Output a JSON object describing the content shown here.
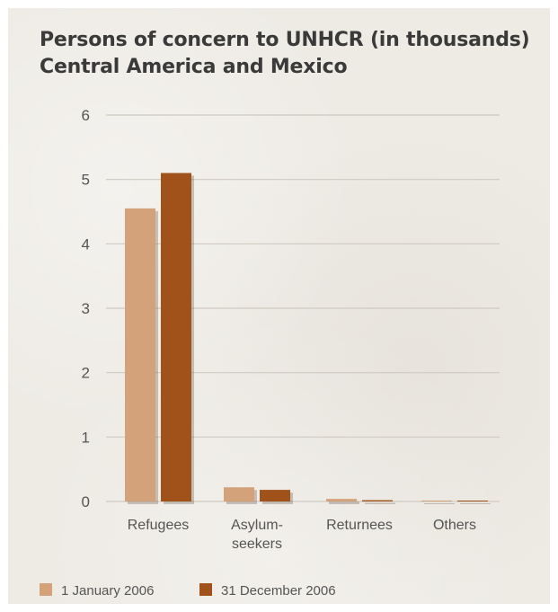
{
  "title_line1": "Persons of concern to UNHCR (in thousands)",
  "title_line2": "Central America and Mexico",
  "chart_data": {
    "type": "bar",
    "categories": [
      [
        "Refugees"
      ],
      [
        "Asylum-",
        "seekers"
      ],
      [
        "Returnees"
      ],
      [
        "Others"
      ]
    ],
    "series": [
      {
        "name": "1 January 2006",
        "values": [
          4.55,
          0.22,
          0.04,
          0.0
        ],
        "color": "#d3a27a"
      },
      {
        "name": "31 December 2006",
        "values": [
          5.1,
          0.18,
          0.02,
          0.01
        ],
        "color": "#a0521a"
      }
    ],
    "yticks": [
      "0",
      "1",
      "2",
      "3",
      "4",
      "5",
      "6"
    ],
    "ylim": [
      0,
      6
    ],
    "grid": true,
    "legend_position": "bottom-left",
    "background_color": "#eeebe5",
    "gridline_color": "#cfcac1"
  }
}
